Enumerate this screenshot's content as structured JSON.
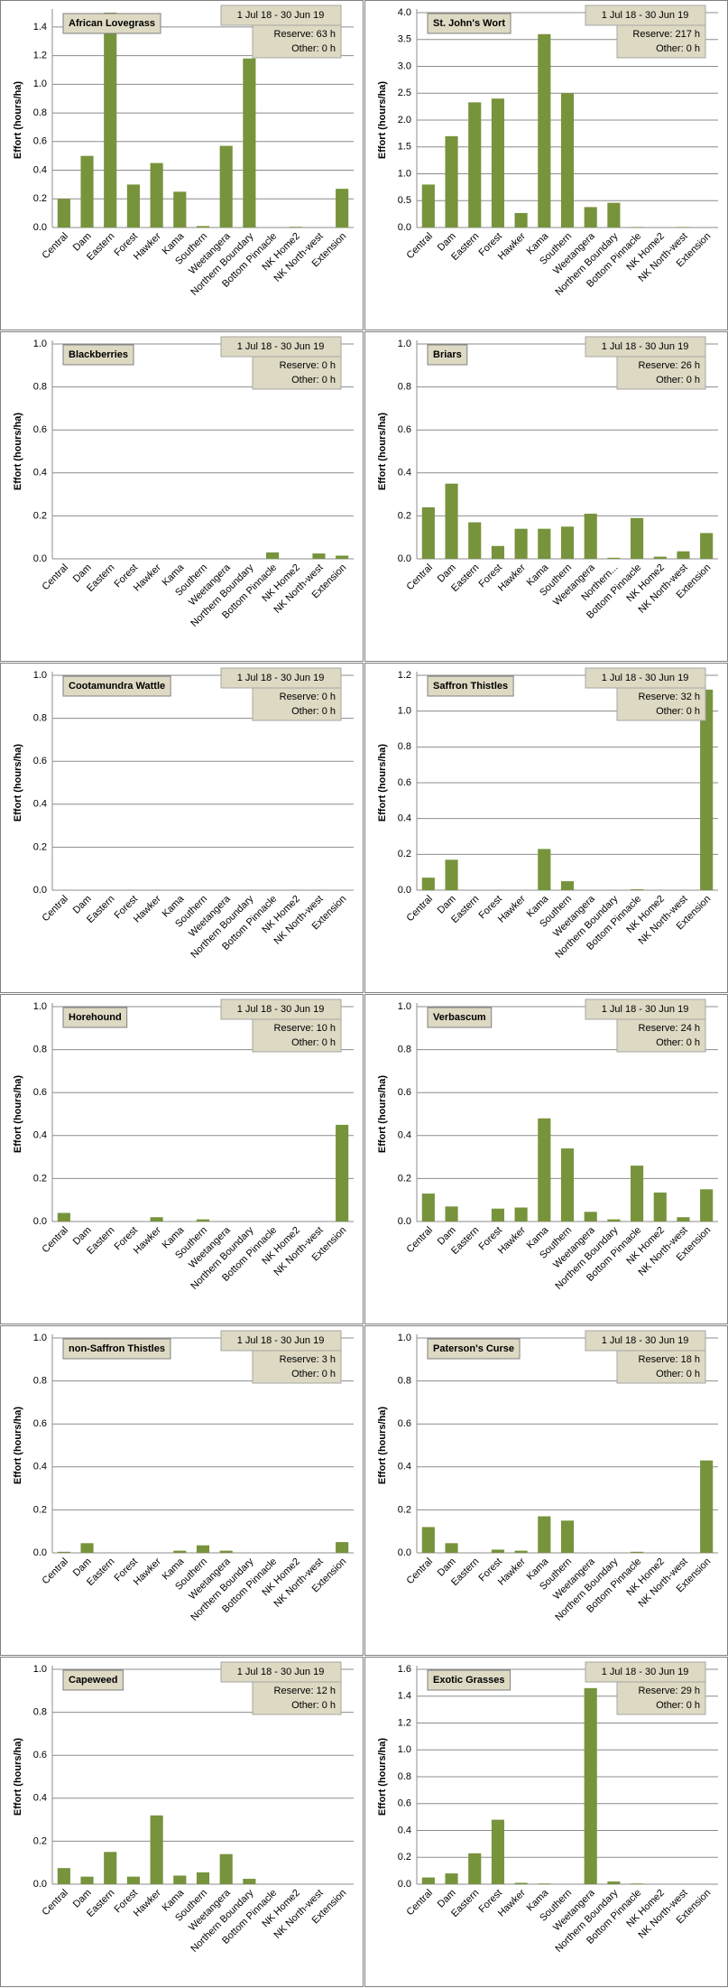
{
  "chart_data": [
    {
      "type": "bar",
      "title": "African Lovegrass",
      "date_range": "1 Jul 18  -  30 Jun 19",
      "notes": [
        "Reserve: 63 h",
        "Other: 0 h"
      ],
      "y_label": "Effort  (hours/ha)",
      "color": "#77933c",
      "grid": true,
      "categories": [
        "Central",
        "Dam",
        "Eastern",
        "Forest",
        "Hawker",
        "Kama",
        "Southern",
        "Weetangera",
        "Northern Boundary",
        "Bottom Pinnacle",
        "NK Home2",
        "NK North-west",
        "Extension"
      ],
      "values": [
        0.2,
        0.5,
        1.5,
        0.3,
        0.45,
        0.25,
        0.01,
        0.57,
        1.18,
        0,
        0.005,
        0,
        0.27
      ],
      "ylim": [
        0,
        1.5
      ],
      "yticks": [
        {
          "value": 0,
          "label": "0.0"
        },
        0.2,
        0.4,
        0.6,
        0.8,
        {
          "value": 1,
          "label": "1.0"
        },
        1.2,
        1.4
      ]
    },
    {
      "type": "bar",
      "title": "St. John's Wort",
      "date_range": "1 Jul 18  -  30 Jun 19",
      "notes": [
        "Reserve: 217 h",
        "Other: 0 h"
      ],
      "y_label": "Effort  (hours/ha)",
      "color": "#77933c",
      "grid": true,
      "categories": [
        "Central",
        "Dam",
        "Eastern",
        "Forest",
        "Hawker",
        "Kama",
        "Southern",
        "Weetangera",
        "Northern Boundary",
        "Bottom Pinnacle",
        "NK Home2",
        "NK North-west",
        "Extension"
      ],
      "values": [
        0.8,
        1.7,
        2.33,
        2.4,
        0.27,
        3.6,
        2.5,
        0.38,
        0.46,
        0.01,
        0,
        0.01,
        0
      ],
      "ylim": [
        0,
        4
      ],
      "yticks": [
        {
          "value": 0,
          "label": "0.0"
        },
        0.5,
        {
          "value": 1,
          "label": "1.0"
        },
        1.5,
        {
          "value": 2,
          "label": "2.0"
        },
        2.5,
        {
          "value": 3,
          "label": "3.0"
        },
        3.5,
        {
          "value": 4,
          "label": "4.0"
        }
      ]
    },
    {
      "type": "bar",
      "title": "Blackberries",
      "date_range": "1 Jul 18  -  30 Jun 19",
      "notes": [
        "Reserve: 0 h",
        "Other: 0 h"
      ],
      "y_label": "Effort  (hours/ha)",
      "color": "#77933c",
      "grid": true,
      "categories": [
        "Central",
        "Dam",
        "Eastern",
        "Forest",
        "Hawker",
        "Kama",
        "Southern",
        "Weetangera",
        "Northern Boundary",
        "Bottom Pinnacle",
        "NK Home2",
        "NK North-west",
        "Extension"
      ],
      "values": [
        0,
        0,
        0,
        0,
        0,
        0,
        0,
        0,
        0,
        0.03,
        0,
        0.025,
        0.015
      ],
      "ylim": [
        0,
        1
      ],
      "yticks": [
        {
          "value": 0,
          "label": "0.0"
        },
        0.2,
        0.4,
        0.6,
        0.8,
        {
          "value": 1,
          "label": "1.0"
        }
      ]
    },
    {
      "type": "bar",
      "title": "Briars",
      "date_range": "1 Jul 18  -  30 Jun 19",
      "notes": [
        "Reserve: 26 h",
        "Other: 0 h"
      ],
      "y_label": "Effort  (hours/ha)",
      "color": "#77933c",
      "grid": true,
      "categories": [
        "Central",
        "Dam",
        "Eastern",
        "Forest",
        "Hawker",
        "Kama",
        "Southern",
        "Weetangera",
        "Northern...",
        "Bottom Pinnacle",
        "NK Home2",
        "NK North-west",
        "Extension"
      ],
      "values": [
        0.24,
        0.35,
        0.17,
        0.06,
        0.14,
        0.14,
        0.15,
        0.21,
        0.005,
        0.19,
        0.01,
        0.035,
        0.12
      ],
      "ylim": [
        0,
        1
      ],
      "yticks": [
        {
          "value": 0,
          "label": "0.0"
        },
        0.2,
        0.4,
        0.6,
        0.8,
        {
          "value": 1,
          "label": "1.0"
        }
      ]
    },
    {
      "type": "bar",
      "title": "Cootamundra Wattle",
      "date_range": "1 Jul 18  -  30 Jun 19",
      "notes": [
        "Reserve: 0 h",
        "Other: 0 h"
      ],
      "y_label": "Effort  (hours/ha)",
      "color": "#77933c",
      "grid": true,
      "categories": [
        "Central",
        "Dam",
        "Eastern",
        "Forest",
        "Hawker",
        "Kama",
        "Southern",
        "Weetangera",
        "Northern Boundary",
        "Bottom Pinnacle",
        "NK Home2",
        "NK North-west",
        "Extension"
      ],
      "values": [
        0,
        0,
        0,
        0,
        0,
        0,
        0,
        0,
        0,
        0,
        0,
        0,
        0
      ],
      "ylim": [
        0,
        1
      ],
      "yticks": [
        {
          "value": 0,
          "label": "0.0"
        },
        0.2,
        0.4,
        0.6,
        0.8,
        {
          "value": 1,
          "label": "1.0"
        }
      ]
    },
    {
      "type": "bar",
      "title": "Saffron Thistles",
      "date_range": "1 Jul 18  -  30 Jun 19",
      "notes": [
        "Reserve: 32 h",
        "Other: 0 h"
      ],
      "y_label": "Effort  (hours/ha)",
      "color": "#77933c",
      "grid": true,
      "categories": [
        "Central",
        "Dam",
        "Eastern",
        "Forest",
        "Hawker",
        "Kama",
        "Southern",
        "Weetangera",
        "Northern Boundary",
        "Bottom Pinnacle",
        "NK Home2",
        "NK North-west",
        "Extension"
      ],
      "values": [
        0.07,
        0.17,
        0,
        0,
        0,
        0.23,
        0.05,
        0,
        0,
        0.005,
        0,
        0,
        1.12
      ],
      "ylim": [
        0,
        1.2
      ],
      "yticks": [
        {
          "value": 0,
          "label": "0.0"
        },
        0.2,
        0.4,
        0.6,
        0.8,
        {
          "value": 1,
          "label": "1.0"
        },
        1.2
      ]
    },
    {
      "type": "bar",
      "title": "Horehound",
      "date_range": "1 Jul 18  -  30 Jun 19",
      "notes": [
        "Reserve: 10 h",
        "Other: 0 h"
      ],
      "y_label": "Effort  (hours/ha)",
      "color": "#77933c",
      "grid": true,
      "categories": [
        "Central",
        "Dam",
        "Eastern",
        "Forest",
        "Hawker",
        "Kama",
        "Southern",
        "Weetangera",
        "Northern Boundary",
        "Bottom Pinnacle",
        "NK Home2",
        "NK North-west",
        "Extension"
      ],
      "values": [
        0.04,
        0,
        0,
        0,
        0.02,
        0,
        0.01,
        0,
        0,
        0,
        0,
        0,
        0.45
      ],
      "ylim": [
        0,
        1
      ],
      "yticks": [
        {
          "value": 0,
          "label": "0.0"
        },
        0.2,
        0.4,
        0.6,
        0.8,
        {
          "value": 1,
          "label": "1.0"
        }
      ]
    },
    {
      "type": "bar",
      "title": "Verbascum",
      "date_range": "1 Jul 18  -  30 Jun 19",
      "notes": [
        "Reserve: 24 h",
        "Other: 0 h"
      ],
      "y_label": "Effort  (hours/ha)",
      "color": "#77933c",
      "grid": true,
      "categories": [
        "Central",
        "Dam",
        "Eastern",
        "Forest",
        "Hawker",
        "Kama",
        "Southern",
        "Weetangera",
        "Northern Boundary",
        "Bottom Pinnacle",
        "NK Home2",
        "NK North-west",
        "Extension"
      ],
      "values": [
        0.13,
        0.07,
        0,
        0.06,
        0.065,
        0.48,
        0.34,
        0.045,
        0.01,
        0.26,
        0.135,
        0.02,
        0.15
      ],
      "ylim": [
        0,
        1
      ],
      "yticks": [
        {
          "value": 0,
          "label": "0.0"
        },
        0.2,
        0.4,
        0.6,
        0.8,
        {
          "value": 1,
          "label": "1.0"
        }
      ]
    },
    {
      "type": "bar",
      "title": "non-Saffron Thistles",
      "date_range": "1 Jul 18  -  30 Jun 19",
      "notes": [
        "Reserve: 3 h",
        "Other: 0 h"
      ],
      "y_label": "Effort  (hours/ha)",
      "color": "#77933c",
      "grid": true,
      "categories": [
        "Central",
        "Dam",
        "Eastern",
        "Forest",
        "Hawker",
        "Kama",
        "Southern",
        "Weetangera",
        "Northern Boundary",
        "Bottom Pinnacle",
        "NK Home2",
        "NK North-west",
        "Extension"
      ],
      "values": [
        0.005,
        0.045,
        0,
        0,
        0,
        0.01,
        0.035,
        0.01,
        0,
        0,
        0,
        0,
        0.05
      ],
      "ylim": [
        0,
        1
      ],
      "yticks": [
        {
          "value": 0,
          "label": "0.0"
        },
        0.2,
        0.4,
        0.6,
        0.8,
        {
          "value": 1,
          "label": "1.0"
        }
      ]
    },
    {
      "type": "bar",
      "title": "Paterson's Curse",
      "date_range": "1 Jul 18  -  30 Jun 19",
      "notes": [
        "Reserve: 18 h",
        "Other: 0 h"
      ],
      "y_label": "Effort  (hours/ha)",
      "color": "#77933c",
      "grid": true,
      "categories": [
        "Central",
        "Dam",
        "Eastern",
        "Forest",
        "Hawker",
        "Kama",
        "Southern",
        "Weetangera",
        "Northern Boundary",
        "Bottom Pinnacle",
        "NK Home2",
        "NK North-west",
        "Extension"
      ],
      "values": [
        0.12,
        0.045,
        0,
        0.015,
        0.01,
        0.17,
        0.15,
        0,
        0,
        0.005,
        0,
        0,
        0.43
      ],
      "ylim": [
        0,
        1
      ],
      "yticks": [
        {
          "value": 0,
          "label": "0.0"
        },
        0.2,
        0.4,
        0.6,
        0.8,
        {
          "value": 1,
          "label": "1.0"
        }
      ]
    },
    {
      "type": "bar",
      "title": "Capeweed",
      "date_range": "1 Jul 18  -  30 Jun 19",
      "notes": [
        "Reserve: 12 h",
        "Other: 0 h"
      ],
      "y_label": "Effort  (hours/ha)",
      "color": "#77933c",
      "grid": true,
      "categories": [
        "Central",
        "Dam",
        "Eastern",
        "Forest",
        "Hawker",
        "Kama",
        "Southern",
        "Weetangera",
        "Northern Boundary",
        "Bottom Pinnacle",
        "NK Home2",
        "NK North-west",
        "Extension"
      ],
      "values": [
        0.075,
        0.035,
        0.15,
        0.035,
        0.32,
        0.04,
        0.055,
        0.14,
        0.025,
        0,
        0,
        0,
        0
      ],
      "ylim": [
        0,
        1
      ],
      "yticks": [
        {
          "value": 0,
          "label": "0.0"
        },
        0.2,
        0.4,
        0.6,
        0.8,
        {
          "value": 1,
          "label": "1.0"
        }
      ]
    },
    {
      "type": "bar",
      "title": "Exotic Grasses",
      "date_range": "1 Jul 18  -  30 Jun 19",
      "notes": [
        "Reserve: 29 h",
        "Other: 0 h"
      ],
      "y_label": "Effort  (hours/ha)",
      "color": "#77933c",
      "grid": true,
      "categories": [
        "Central",
        "Dam",
        "Eastern",
        "Forest",
        "Hawker",
        "Kama",
        "Southern",
        "Weetangera",
        "Northern Boundary",
        "Bottom Pinnacle",
        "NK Home2",
        "NK North-west",
        "Extension"
      ],
      "values": [
        0.05,
        0.08,
        0.23,
        0.48,
        0.01,
        0.005,
        0,
        1.46,
        0.02,
        0.005,
        0,
        0,
        0
      ],
      "ylim": [
        0,
        1.6
      ],
      "yticks": [
        {
          "value": 0,
          "label": "0.0"
        },
        0.2,
        0.4,
        0.6,
        0.8,
        {
          "value": 1,
          "label": "1.0"
        },
        1.2,
        1.4,
        1.6
      ]
    }
  ]
}
